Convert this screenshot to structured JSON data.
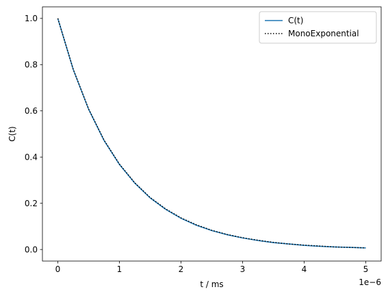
{
  "chart_data": {
    "type": "line",
    "xlabel": "t / ms",
    "ylabel": "C(t)",
    "x_offset_label": "1e−6",
    "xlim": [
      -0.25,
      5.25
    ],
    "ylim": [
      -0.05,
      1.05
    ],
    "x_ticks": [
      0,
      1,
      2,
      3,
      4,
      5
    ],
    "x_tick_labels": [
      "0",
      "1",
      "2",
      "3",
      "4",
      "5"
    ],
    "y_ticks": [
      0.0,
      0.2,
      0.4,
      0.6,
      0.8,
      1.0
    ],
    "y_tick_labels": [
      "0.0",
      "0.2",
      "0.4",
      "0.6",
      "0.8",
      "1.0"
    ],
    "grid": false,
    "legend_position": "top-right",
    "x": [
      0,
      0.25,
      0.5,
      0.75,
      1.0,
      1.25,
      1.5,
      1.75,
      2.0,
      2.25,
      2.5,
      2.75,
      3.0,
      3.25,
      3.5,
      3.75,
      4.0,
      4.25,
      4.5,
      4.75,
      5.0
    ],
    "series": [
      {
        "name": "C(t)",
        "color": "#1f77b4",
        "style": "solid",
        "values": [
          1.0,
          0.779,
          0.607,
          0.472,
          0.368,
          0.287,
          0.223,
          0.174,
          0.135,
          0.105,
          0.082,
          0.064,
          0.05,
          0.039,
          0.03,
          0.024,
          0.018,
          0.014,
          0.011,
          0.009,
          0.007
        ]
      },
      {
        "name": "MonoExponential",
        "color": "#000000",
        "style": "dotted",
        "values": [
          1.0,
          0.78,
          0.608,
          0.474,
          0.37,
          0.289,
          0.225,
          0.176,
          0.137,
          0.107,
          0.083,
          0.065,
          0.051,
          0.04,
          0.031,
          0.024,
          0.019,
          0.015,
          0.011,
          0.009,
          0.007
        ]
      }
    ]
  }
}
